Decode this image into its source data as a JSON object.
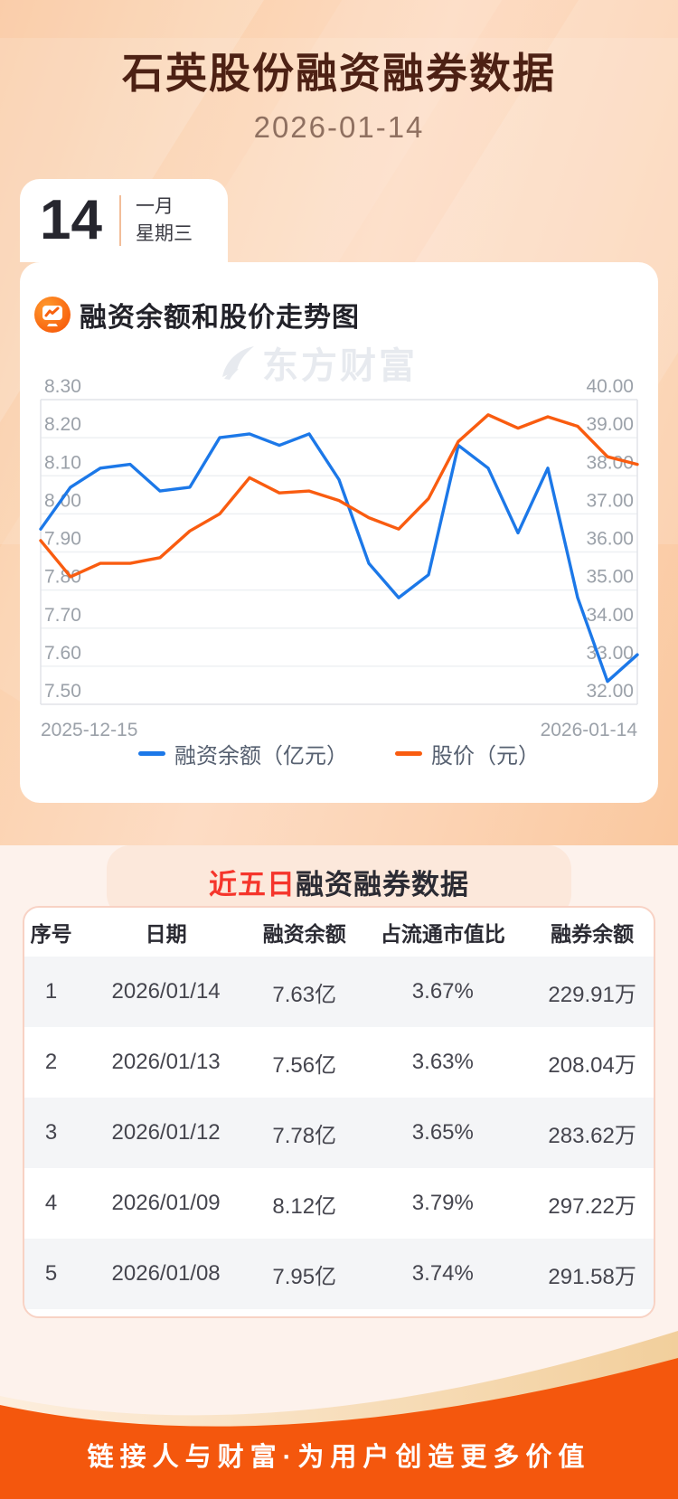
{
  "header": {
    "title": "石英股份融资融券数据",
    "date": "2026-01-14"
  },
  "calendar": {
    "day": "14",
    "month": "一月",
    "weekday": "星期三"
  },
  "chart_section": {
    "title": "融资余额和股价走势图"
  },
  "watermark": {
    "text": "东方财富"
  },
  "chart_data": {
    "type": "line",
    "x_labels": [
      "2025-12-15",
      "2026-01-14"
    ],
    "left_axis": {
      "min": 7.5,
      "max": 8.3,
      "ticks": [
        "8.30",
        "8.20",
        "8.10",
        "8.00",
        "7.90",
        "7.80",
        "7.70",
        "7.60",
        "7.50"
      ]
    },
    "right_axis": {
      "min": 32.0,
      "max": 40.0,
      "ticks": [
        "40.00",
        "39.00",
        "38.00",
        "37.00",
        "36.00",
        "35.00",
        "34.00",
        "33.00",
        "32.00"
      ]
    },
    "grid": true,
    "legend_position": "bottom",
    "series": [
      {
        "name": "融资余额（亿元）",
        "axis": "left",
        "color": "#1c78e8",
        "values": [
          7.96,
          8.07,
          8.12,
          8.13,
          8.06,
          8.07,
          8.2,
          8.21,
          8.18,
          8.21,
          8.09,
          7.87,
          7.78,
          7.84,
          8.18,
          8.12,
          7.95,
          8.12,
          7.78,
          7.56,
          7.63
        ]
      },
      {
        "name": "股价（元）",
        "axis": "right",
        "color": "#f95c10",
        "values": [
          36.3,
          35.35,
          35.7,
          35.7,
          35.85,
          36.55,
          37.0,
          37.95,
          37.55,
          37.6,
          37.35,
          36.9,
          36.6,
          37.4,
          38.9,
          39.6,
          39.25,
          39.55,
          39.3,
          38.5,
          38.3
        ]
      }
    ]
  },
  "table_section": {
    "title_highlight": "近五日",
    "title_rest": "融资融券数据",
    "columns": [
      "序号",
      "日期",
      "融资余额",
      "占流通市值比",
      "融券余额"
    ],
    "rows": [
      [
        "1",
        "2026/01/14",
        "7.63亿",
        "3.67%",
        "229.91万"
      ],
      [
        "2",
        "2026/01/13",
        "7.56亿",
        "3.63%",
        "208.04万"
      ],
      [
        "3",
        "2026/01/12",
        "7.78亿",
        "3.65%",
        "283.62万"
      ],
      [
        "4",
        "2026/01/09",
        "8.12亿",
        "3.79%",
        "297.22万"
      ],
      [
        "5",
        "2026/01/08",
        "7.95亿",
        "3.74%",
        "291.58万"
      ]
    ]
  },
  "footer": {
    "slogan": "链接人与财富·为用户创造更多价值"
  },
  "colors": {
    "footer_orange": "#f4570d",
    "line_blue": "#1c78e8",
    "line_orange": "#f95c10",
    "highlight_red": "#f5352b",
    "header_peach": "#fbd2af"
  }
}
